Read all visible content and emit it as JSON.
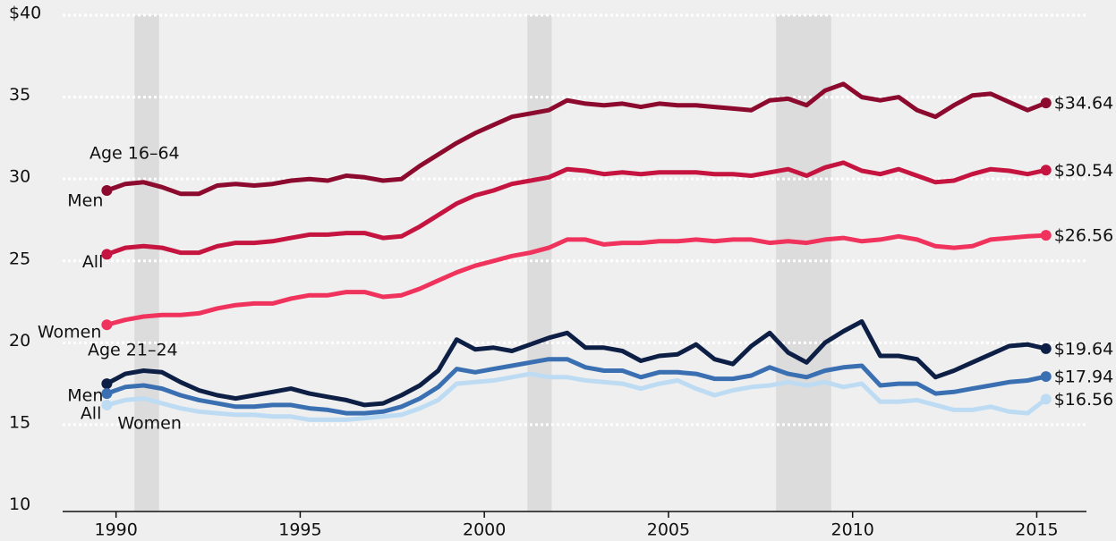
{
  "chart_data": {
    "type": "line",
    "annotations": [
      "Age 16–64",
      "Age 21–24"
    ],
    "x": [
      1989.75,
      1990.25,
      1990.75,
      1991.25,
      1991.75,
      1992.25,
      1992.75,
      1993.25,
      1993.75,
      1994.25,
      1994.75,
      1995.25,
      1995.75,
      1996.25,
      1996.75,
      1997.25,
      1997.75,
      1998.25,
      1998.75,
      1999.25,
      1999.75,
      2000.25,
      2000.75,
      2001.25,
      2001.75,
      2002.25,
      2002.75,
      2003.25,
      2003.75,
      2004.25,
      2004.75,
      2005.25,
      2005.75,
      2006.25,
      2006.75,
      2007.25,
      2007.75,
      2008.25,
      2008.75,
      2009.25,
      2009.75,
      2010.25,
      2010.75,
      2011.25,
      2011.75,
      2012.25,
      2012.75,
      2013.25,
      2013.75,
      2014.25,
      2014.75,
      2015.25
    ],
    "series": [
      {
        "name": "Men",
        "color": "#8c0a2e",
        "last_label": "$34.64",
        "values": [
          29.3,
          29.7,
          29.8,
          29.5,
          29.1,
          29.1,
          29.6,
          29.7,
          29.6,
          29.7,
          29.9,
          30.0,
          29.9,
          30.2,
          30.1,
          29.9,
          30.0,
          30.8,
          31.5,
          32.2,
          32.8,
          33.3,
          33.8,
          34.0,
          34.2,
          34.8,
          34.6,
          34.5,
          34.6,
          34.4,
          34.6,
          34.5,
          34.5,
          34.4,
          34.3,
          34.2,
          34.8,
          34.9,
          34.5,
          35.4,
          35.8,
          35.0,
          34.8,
          35.0,
          34.2,
          33.8,
          34.5,
          35.1,
          35.2,
          34.7,
          34.2,
          34.64
        ]
      },
      {
        "name": "All",
        "color": "#c4143f",
        "last_label": "$30.54",
        "values": [
          25.4,
          25.8,
          25.9,
          25.8,
          25.5,
          25.5,
          25.9,
          26.1,
          26.1,
          26.2,
          26.4,
          26.6,
          26.6,
          26.7,
          26.7,
          26.4,
          26.5,
          27.1,
          27.8,
          28.5,
          29.0,
          29.3,
          29.7,
          29.9,
          30.1,
          30.6,
          30.5,
          30.3,
          30.4,
          30.3,
          30.4,
          30.4,
          30.4,
          30.3,
          30.3,
          30.2,
          30.4,
          30.6,
          30.2,
          30.7,
          31.0,
          30.5,
          30.3,
          30.6,
          30.2,
          29.8,
          29.9,
          30.3,
          30.6,
          30.5,
          30.3,
          30.54
        ]
      },
      {
        "name": "Women",
        "color": "#f0335c",
        "last_label": "$26.56",
        "values": [
          21.1,
          21.4,
          21.6,
          21.7,
          21.7,
          21.8,
          22.1,
          22.3,
          22.4,
          22.4,
          22.7,
          22.9,
          22.9,
          23.1,
          23.1,
          22.8,
          22.9,
          23.3,
          23.8,
          24.3,
          24.7,
          25.0,
          25.3,
          25.5,
          25.8,
          26.3,
          26.3,
          26.0,
          26.1,
          26.1,
          26.2,
          26.2,
          26.3,
          26.2,
          26.3,
          26.3,
          26.1,
          26.2,
          26.1,
          26.3,
          26.4,
          26.2,
          26.3,
          26.5,
          26.3,
          25.9,
          25.8,
          25.9,
          26.3,
          26.4,
          26.5,
          26.56
        ]
      },
      {
        "name": "Men",
        "color": "#0e1f45",
        "last_label": "$19.64",
        "values": [
          17.5,
          18.1,
          18.3,
          18.2,
          17.6,
          17.1,
          16.8,
          16.6,
          16.8,
          17.0,
          17.2,
          16.9,
          16.7,
          16.5,
          16.2,
          16.3,
          16.8,
          17.4,
          18.3,
          20.2,
          19.6,
          19.7,
          19.5,
          19.9,
          20.3,
          20.6,
          19.7,
          19.7,
          19.5,
          18.9,
          19.2,
          19.3,
          19.9,
          19.0,
          18.7,
          19.8,
          20.6,
          19.4,
          18.8,
          20.0,
          20.7,
          21.3,
          19.2,
          19.2,
          19.0,
          17.9,
          18.3,
          18.8,
          19.3,
          19.8,
          19.9,
          19.64
        ]
      },
      {
        "name": "All",
        "color": "#3a70b2",
        "last_label": "$17.94",
        "values": [
          16.9,
          17.3,
          17.4,
          17.2,
          16.8,
          16.5,
          16.3,
          16.1,
          16.1,
          16.2,
          16.2,
          16.0,
          15.9,
          15.7,
          15.7,
          15.8,
          16.1,
          16.6,
          17.3,
          18.4,
          18.2,
          18.4,
          18.6,
          18.8,
          19.0,
          19.0,
          18.5,
          18.3,
          18.3,
          17.9,
          18.2,
          18.2,
          18.1,
          17.8,
          17.8,
          18.0,
          18.5,
          18.1,
          17.9,
          18.3,
          18.5,
          18.6,
          17.4,
          17.5,
          17.5,
          16.9,
          17.0,
          17.2,
          17.4,
          17.6,
          17.7,
          17.94
        ]
      },
      {
        "name": "Women",
        "color": "#bddcf3",
        "last_label": "$16.56",
        "values": [
          16.2,
          16.5,
          16.6,
          16.3,
          16.0,
          15.8,
          15.7,
          15.6,
          15.6,
          15.5,
          15.5,
          15.3,
          15.3,
          15.3,
          15.4,
          15.5,
          15.6,
          16.0,
          16.5,
          17.5,
          17.6,
          17.7,
          17.9,
          18.1,
          17.9,
          17.9,
          17.7,
          17.6,
          17.5,
          17.2,
          17.5,
          17.7,
          17.2,
          16.8,
          17.1,
          17.3,
          17.4,
          17.6,
          17.4,
          17.6,
          17.3,
          17.5,
          16.4,
          16.4,
          16.5,
          16.2,
          15.9,
          15.9,
          16.1,
          15.8,
          15.7,
          16.56
        ]
      }
    ],
    "recessions": [
      [
        1990.5,
        1991.17
      ],
      [
        2001.17,
        2001.83
      ],
      [
        2007.92,
        2009.42
      ]
    ],
    "recession_color": "#dcdcdc",
    "xlim": [
      1988.55,
      2016.35
    ],
    "xticks": [
      1990,
      1995,
      2000,
      2005,
      2010,
      2015
    ],
    "ylim": [
      9.7,
      40
    ],
    "yticks": [
      10,
      15,
      20,
      25,
      30,
      35,
      {
        "value": 40,
        "label": "$40"
      }
    ],
    "grid": true
  }
}
